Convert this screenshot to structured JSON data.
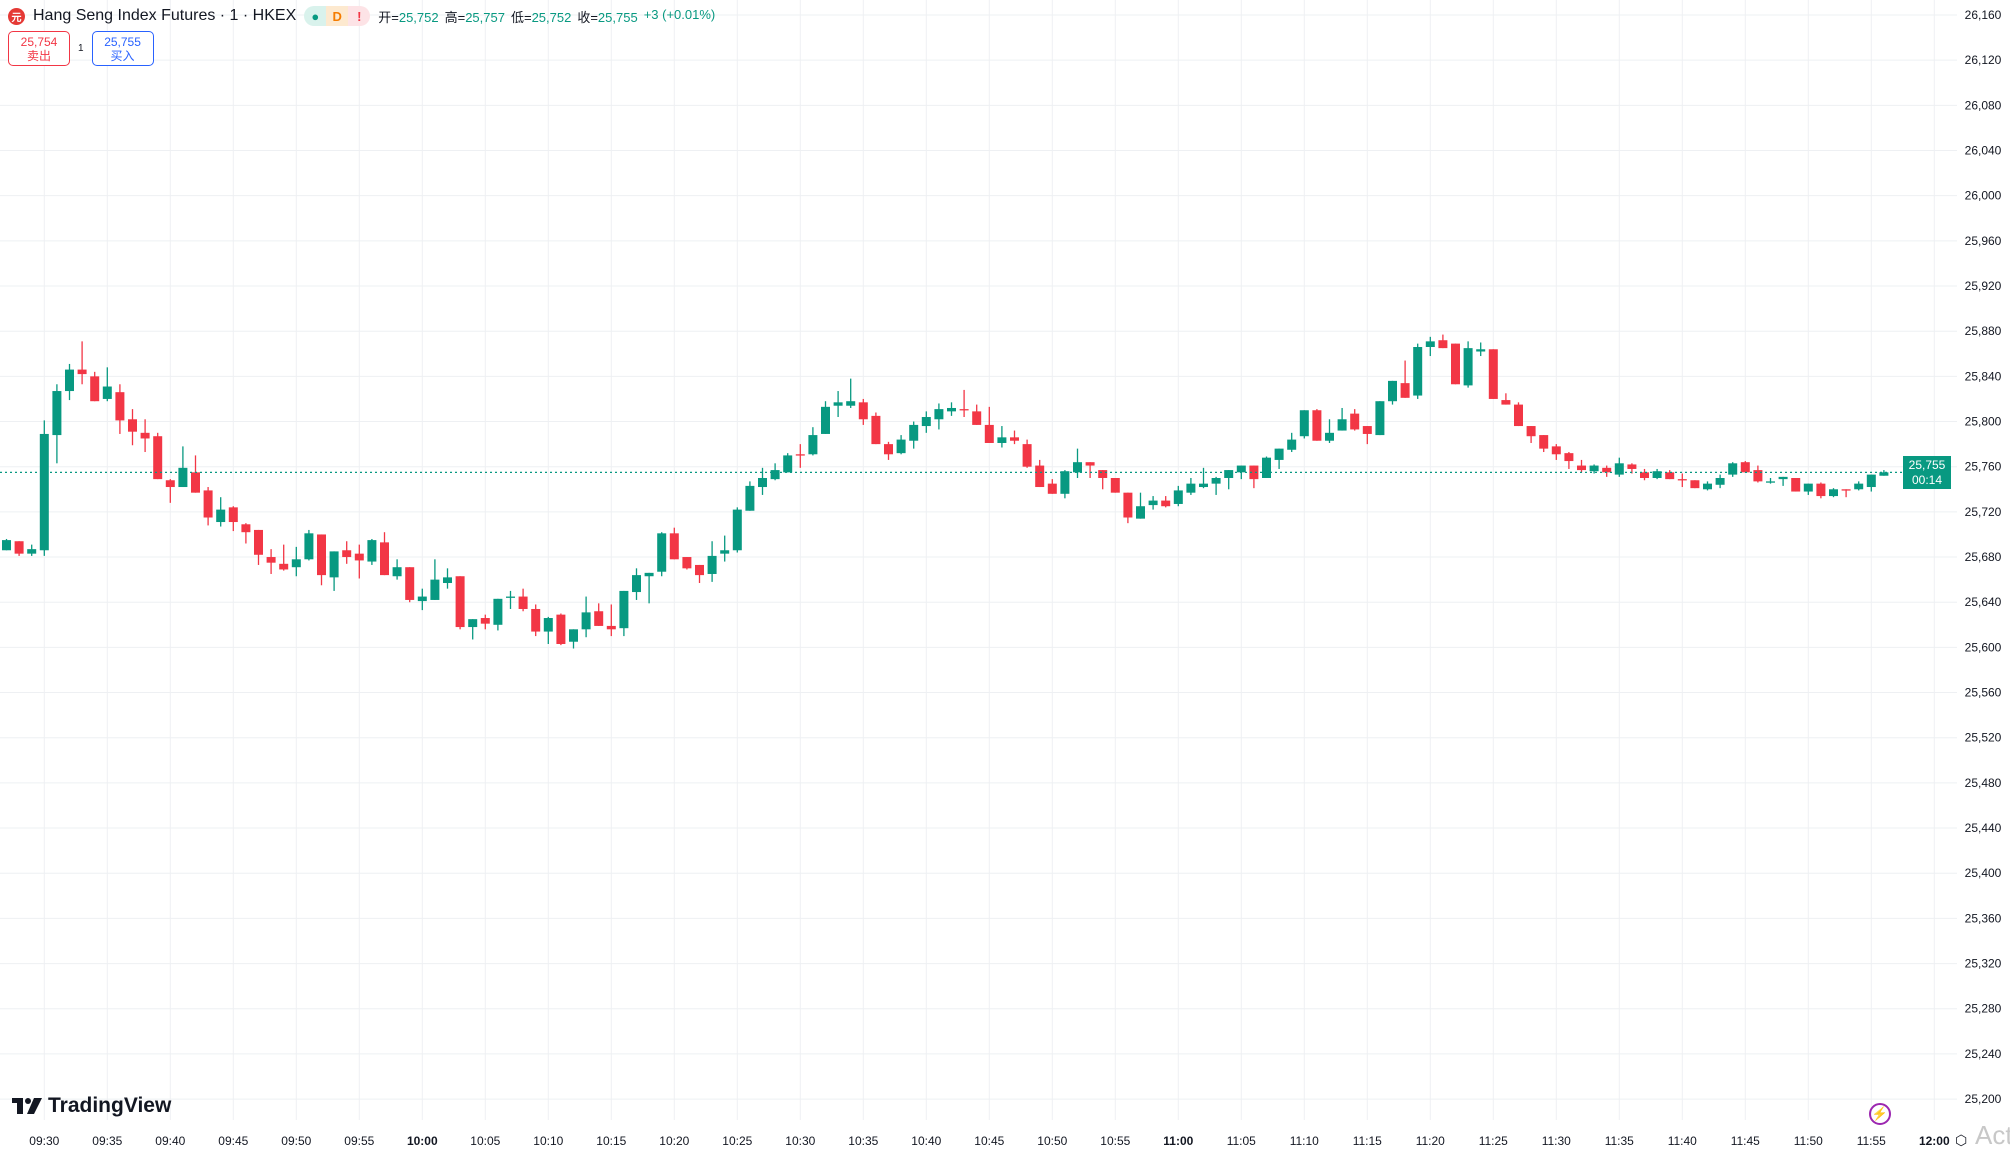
{
  "header": {
    "symbol_title": "Hang Seng Index Futures · 1 · HKEX",
    "logo_letter": "元",
    "badges": [
      "●",
      "D",
      "!"
    ],
    "open_label": "开=",
    "open": "25,752",
    "high_label": "高=",
    "high": "25,757",
    "low_label": "低=",
    "low": "25,752",
    "close_label": "收=",
    "close": "25,755",
    "change": "+3 (+0.01%)"
  },
  "trade": {
    "sell_price": "25,754",
    "sell_label": "卖出",
    "quantity": "1",
    "buy_price": "25,755",
    "buy_label": "买入"
  },
  "last_price": {
    "price": "25,755",
    "countdown": "00:14"
  },
  "branding": {
    "logo_text": "TradingView",
    "watermark": "Activ"
  },
  "colors": {
    "up": "#089981",
    "down": "#F23645",
    "grid": "#eef0f3",
    "last_line": "#089981"
  },
  "icons": {
    "lightning": "lightning-icon",
    "settings": "settings-icon"
  },
  "chart_data": {
    "type": "candlestick",
    "interval": "1",
    "first_bar_time": "09:27",
    "price_ticks": [
      "26,160",
      "26,120",
      "26,080",
      "26,040",
      "26,000",
      "25,960",
      "25,920",
      "25,880",
      "25,840",
      "25,800",
      "25,760",
      "25,720",
      "25,680",
      "25,640",
      "25,600",
      "25,560",
      "25,520",
      "25,480",
      "25,440",
      "25,400",
      "25,360",
      "25,320",
      "25,280",
      "25,240",
      "25,200"
    ],
    "ylim": [
      25200,
      26160
    ],
    "time_ticks": [
      "09:30",
      "09:35",
      "09:40",
      "09:45",
      "09:50",
      "09:55",
      "10:00",
      "10:05",
      "10:10",
      "10:15",
      "10:20",
      "10:25",
      "10:30",
      "10:35",
      "10:40",
      "10:45",
      "10:50",
      "10:55",
      "11:00",
      "11:05",
      "11:10",
      "11:15",
      "11:20",
      "11:25",
      "11:30",
      "11:35",
      "11:40",
      "11:45",
      "11:50",
      "11:55",
      "12:00"
    ],
    "bold_time_ticks": [
      "10:00",
      "11:00",
      "12:00"
    ],
    "grid": true,
    "ohlc": [
      [
        25686,
        25696,
        25686,
        25695
      ],
      [
        25694,
        25694,
        25681,
        25683
      ],
      [
        25683,
        25691,
        25681,
        25687
      ],
      [
        25686,
        25801,
        25681,
        25789
      ],
      [
        25788,
        25833,
        25763,
        25827
      ],
      [
        25827,
        25851,
        25819,
        25846
      ],
      [
        25846,
        25871,
        25833,
        25842
      ],
      [
        25840,
        25844,
        25818,
        25818
      ],
      [
        25820,
        25848,
        25818,
        25831
      ],
      [
        25826,
        25833,
        25789,
        25801
      ],
      [
        25802,
        25811,
        25779,
        25791
      ],
      [
        25790,
        25802,
        25773,
        25785
      ],
      [
        25787,
        25790,
        25749,
        25749
      ],
      [
        25748,
        25749,
        25728,
        25742
      ],
      [
        25742,
        25778,
        25742,
        25759
      ],
      [
        25755,
        25770,
        25737,
        25737
      ],
      [
        25739,
        25742,
        25708,
        25715
      ],
      [
        25711,
        25733,
        25707,
        25722
      ],
      [
        25724,
        25725,
        25703,
        25711
      ],
      [
        25709,
        25710,
        25692,
        25702
      ],
      [
        25704,
        25704,
        25673,
        25682
      ],
      [
        25680,
        25687,
        25665,
        25675
      ],
      [
        25674,
        25691,
        25668,
        25669
      ],
      [
        25671,
        25689,
        25663,
        25678
      ],
      [
        25678,
        25704,
        25677,
        25701
      ],
      [
        25700,
        25700,
        25655,
        25664
      ],
      [
        25662,
        25685,
        25650,
        25685
      ],
      [
        25686,
        25694,
        25674,
        25680
      ],
      [
        25683,
        25691,
        25661,
        25677
      ],
      [
        25676,
        25696,
        25673,
        25695
      ],
      [
        25693,
        25702,
        25664,
        25664
      ],
      [
        25663,
        25678,
        25660,
        25671
      ],
      [
        25671,
        25671,
        25640,
        25642
      ],
      [
        25641,
        25652,
        25633,
        25645
      ],
      [
        25642,
        25678,
        25642,
        25660
      ],
      [
        25657,
        25670,
        25652,
        25662
      ],
      [
        25663,
        25663,
        25616,
        25618
      ],
      [
        25618,
        25625,
        25607,
        25625
      ],
      [
        25626,
        25629,
        25616,
        25621
      ],
      [
        25620,
        25643,
        25615,
        25643
      ],
      [
        25644,
        25650,
        25634,
        25645
      ],
      [
        25645,
        25652,
        25632,
        25634
      ],
      [
        25634,
        25638,
        25610,
        25614
      ],
      [
        25614,
        25627,
        25603,
        25626
      ],
      [
        25629,
        25630,
        25602,
        25603
      ],
      [
        25605,
        25616,
        25599,
        25616
      ],
      [
        25616,
        25645,
        25609,
        25631
      ],
      [
        25632,
        25639,
        25619,
        25619
      ],
      [
        25619,
        25638,
        25610,
        25616
      ],
      [
        25617,
        25650,
        25610,
        25650
      ],
      [
        25649,
        25670,
        25642,
        25664
      ],
      [
        25663,
        25666,
        25639,
        25666
      ],
      [
        25667,
        25702,
        25663,
        25701
      ],
      [
        25701,
        25706,
        25678,
        25678
      ],
      [
        25680,
        25680,
        25669,
        25670
      ],
      [
        25673,
        25673,
        25657,
        25664
      ],
      [
        25665,
        25694,
        25658,
        25681
      ],
      [
        25683,
        25699,
        25676,
        25686
      ],
      [
        25686,
        25724,
        25684,
        25722
      ],
      [
        25721,
        25747,
        25721,
        25743
      ],
      [
        25742,
        25759,
        25735,
        25750
      ],
      [
        25749,
        25763,
        25748,
        25757
      ],
      [
        25755,
        25772,
        25755,
        25770
      ],
      [
        25771,
        25780,
        25759,
        25770
      ],
      [
        25771,
        25795,
        25770,
        25788
      ],
      [
        25789,
        25818,
        25789,
        25813
      ],
      [
        25814,
        25827,
        25804,
        25817
      ],
      [
        25814,
        25838,
        25812,
        25818
      ],
      [
        25817,
        25820,
        25797,
        25802
      ],
      [
        25805,
        25808,
        25780,
        25780
      ],
      [
        25780,
        25782,
        25766,
        25771
      ],
      [
        25772,
        25788,
        25771,
        25784
      ],
      [
        25783,
        25800,
        25776,
        25797
      ],
      [
        25796,
        25809,
        25790,
        25804
      ],
      [
        25802,
        25816,
        25793,
        25811
      ],
      [
        25809,
        25817,
        25805,
        25812
      ],
      [
        25811,
        25828,
        25804,
        25810
      ],
      [
        25809,
        25815,
        25797,
        25797
      ],
      [
        25797,
        25813,
        25781,
        25781
      ],
      [
        25781,
        25796,
        25777,
        25786
      ],
      [
        25786,
        25792,
        25780,
        25783
      ],
      [
        25780,
        25784,
        25759,
        25760
      ],
      [
        25761,
        25766,
        25742,
        25742
      ],
      [
        25745,
        25749,
        25736,
        25736
      ],
      [
        25736,
        25757,
        25732,
        25756
      ],
      [
        25755,
        25776,
        25750,
        25764
      ],
      [
        25764,
        25764,
        25750,
        25761
      ],
      [
        25757,
        25757,
        25740,
        25750
      ],
      [
        25750,
        25750,
        25737,
        25737
      ],
      [
        25737,
        25737,
        25710,
        25715
      ],
      [
        25714,
        25737,
        25714,
        25725
      ],
      [
        25726,
        25734,
        25722,
        25730
      ],
      [
        25730,
        25734,
        25724,
        25725
      ],
      [
        25727,
        25743,
        25725,
        25739
      ],
      [
        25737,
        25750,
        25735,
        25745
      ],
      [
        25742,
        25759,
        25741,
        25745
      ],
      [
        25745,
        25751,
        25735,
        25750
      ],
      [
        25750,
        25757,
        25740,
        25757
      ],
      [
        25755,
        25761,
        25749,
        25761
      ],
      [
        25761,
        25761,
        25741,
        25749
      ],
      [
        25750,
        25769,
        25750,
        25768
      ],
      [
        25766,
        25776,
        25758,
        25776
      ],
      [
        25775,
        25790,
        25773,
        25784
      ],
      [
        25787,
        25810,
        25785,
        25810
      ],
      [
        25810,
        25811,
        25783,
        25783
      ],
      [
        25783,
        25802,
        25781,
        25790
      ],
      [
        25792,
        25812,
        25792,
        25802
      ],
      [
        25807,
        25811,
        25792,
        25793
      ],
      [
        25796,
        25796,
        25780,
        25789
      ],
      [
        25788,
        25818,
        25788,
        25818
      ],
      [
        25818,
        25836,
        25815,
        25836
      ],
      [
        25834,
        25854,
        25821,
        25821
      ],
      [
        25823,
        25869,
        25820,
        25866
      ],
      [
        25866,
        25875,
        25858,
        25871
      ],
      [
        25872,
        25877,
        25865,
        25865
      ],
      [
        25869,
        25869,
        25833,
        25833
      ],
      [
        25832,
        25871,
        25830,
        25865
      ],
      [
        25862,
        25870,
        25858,
        25864
      ],
      [
        25864,
        25864,
        25820,
        25820
      ],
      [
        25819,
        25825,
        25815,
        25815
      ],
      [
        25815,
        25817,
        25796,
        25796
      ],
      [
        25796,
        25796,
        25781,
        25787
      ],
      [
        25788,
        25788,
        25773,
        25776
      ],
      [
        25778,
        25780,
        25766,
        25771
      ],
      [
        25772,
        25773,
        25758,
        25765
      ],
      [
        25761,
        25766,
        25755,
        25757
      ],
      [
        25756,
        25762,
        25754,
        25761
      ],
      [
        25759,
        25761,
        25751,
        25755
      ],
      [
        25753,
        25768,
        25751,
        25763
      ],
      [
        25762,
        25763,
        25754,
        25758
      ],
      [
        25755,
        25758,
        25748,
        25750
      ],
      [
        25750,
        25758,
        25749,
        25756
      ],
      [
        25755,
        25757,
        25749,
        25749
      ],
      [
        25749,
        25754,
        25742,
        25748
      ],
      [
        25748,
        25748,
        25741,
        25741
      ],
      [
        25740,
        25747,
        25739,
        25745
      ],
      [
        25744,
        25753,
        25741,
        25750
      ],
      [
        25753,
        25764,
        25751,
        25763
      ],
      [
        25764,
        25765,
        25755,
        25755
      ],
      [
        25757,
        25761,
        25746,
        25747
      ],
      [
        25747,
        25750,
        25745,
        25747
      ],
      [
        25749,
        25751,
        25743,
        25751
      ],
      [
        25750,
        25750,
        25738,
        25738
      ],
      [
        25738,
        25745,
        25735,
        25745
      ],
      [
        25745,
        25746,
        25732,
        25734
      ],
      [
        25734,
        25741,
        25733,
        25740
      ],
      [
        25740,
        25740,
        25733,
        25739
      ],
      [
        25740,
        25747,
        25739,
        25745
      ],
      [
        25742,
        25753,
        25738,
        25753
      ],
      [
        25752,
        25757,
        25752,
        25755
      ]
    ],
    "last_price": 25755
  }
}
